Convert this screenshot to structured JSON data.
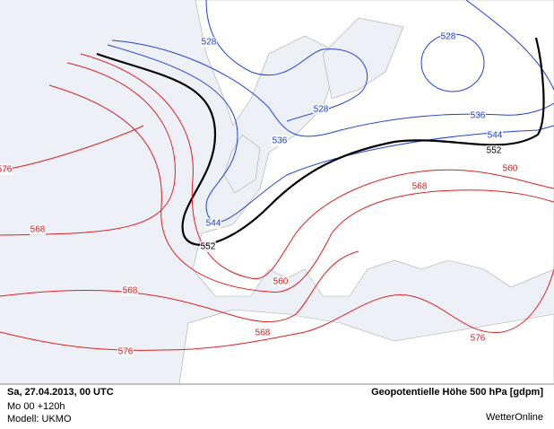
{
  "footer": {
    "datetime": "Sa, 27.04.2013, 00 UTC",
    "run": "Mo 00 +120h",
    "model": "Modell: UKMO",
    "title": "Geopotentielle Höhe 500 hPa [gdpm]",
    "brand": "WetterOnline"
  },
  "contour_labels": [
    "528",
    "528",
    "528",
    "536",
    "536",
    "544",
    "544",
    "552",
    "552",
    "560",
    "568",
    "576",
    "568",
    "560",
    "568",
    "568",
    "576",
    "576"
  ]
}
